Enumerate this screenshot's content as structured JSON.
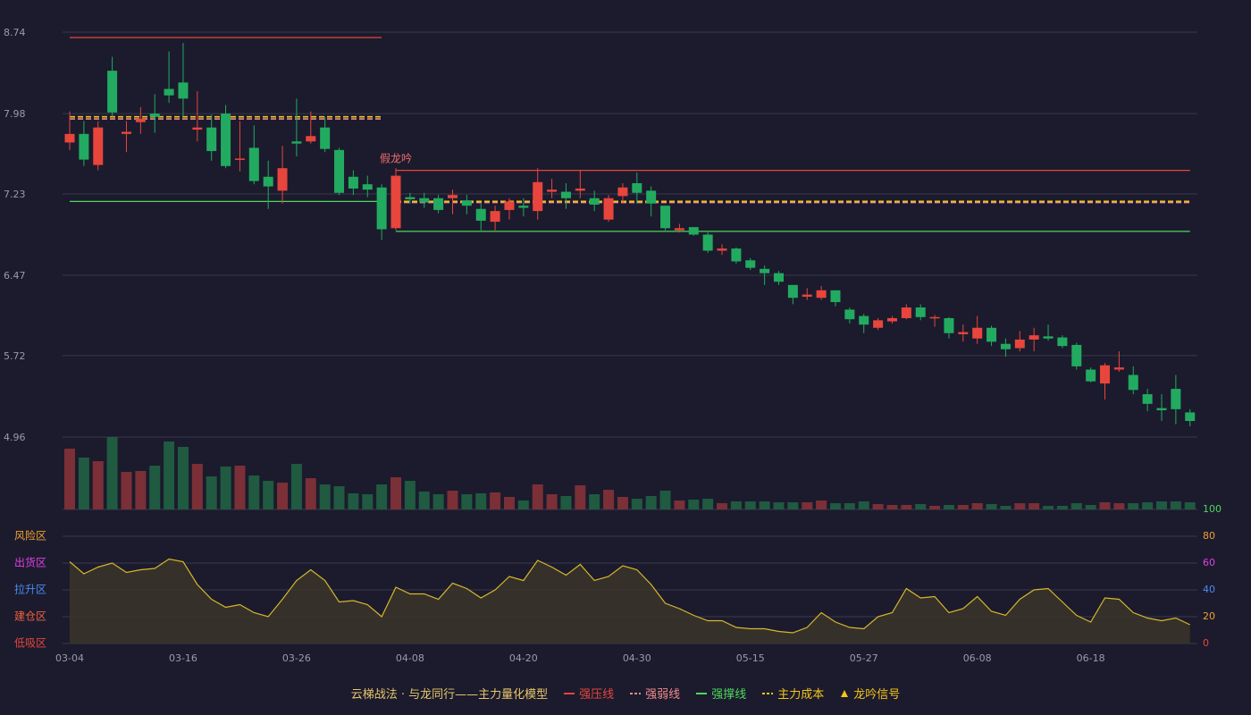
{
  "chart_data": {
    "type": "candlestick",
    "categories": [
      "03-04",
      null,
      null,
      null,
      null,
      null,
      null,
      null,
      "03-16",
      null,
      null,
      null,
      null,
      null,
      null,
      null,
      "03-26",
      null,
      null,
      null,
      null,
      null,
      null,
      null,
      "04-08",
      null,
      null,
      null,
      null,
      null,
      null,
      null,
      "04-20",
      null,
      null,
      null,
      null,
      null,
      null,
      null,
      "04-30",
      null,
      null,
      null,
      null,
      null,
      null,
      null,
      "05-15",
      null,
      null,
      null,
      null,
      null,
      null,
      null,
      "05-27",
      null,
      null,
      null,
      null,
      null,
      null,
      null,
      "06-08",
      null,
      null,
      null,
      null,
      null,
      null,
      null,
      "06-18",
      null,
      null,
      null,
      null,
      null,
      null,
      null
    ],
    "ohlc": {
      "up_color": "#e8453c",
      "down_color": "#22ab60",
      "open": [
        7.71,
        7.79,
        7.5,
        8.38,
        7.79,
        7.9,
        7.98,
        8.21,
        8.27,
        7.83,
        7.85,
        7.98,
        7.55,
        7.66,
        7.39,
        7.26,
        7.72,
        7.72,
        7.85,
        7.64,
        7.39,
        7.32,
        7.29,
        6.91,
        7.2,
        7.19,
        7.19,
        7.19,
        7.17,
        7.09,
        6.97,
        7.08,
        7.12,
        7.07,
        7.25,
        7.25,
        7.26,
        7.19,
        6.99,
        7.21,
        7.33,
        7.26,
        7.12,
        6.89,
        6.92,
        6.85,
        6.7,
        6.72,
        6.61,
        6.53,
        6.49,
        6.38,
        6.27,
        6.26,
        6.33,
        6.15,
        6.09,
        5.98,
        6.04,
        6.07,
        6.17,
        6.07,
        6.07,
        5.92,
        5.88,
        5.98,
        5.83,
        5.79,
        5.87,
        5.9,
        5.89,
        5.82,
        5.59,
        5.46,
        5.59,
        5.54,
        5.36,
        5.23,
        5.41,
        5.19
      ],
      "high": [
        8.0,
        7.91,
        7.91,
        8.51,
        7.91,
        8.04,
        8.16,
        8.56,
        8.64,
        8.19,
        7.97,
        8.06,
        7.91,
        7.87,
        7.54,
        7.68,
        8.12,
        8.0,
        7.95,
        7.66,
        7.45,
        7.4,
        7.32,
        7.47,
        7.24,
        7.24,
        7.22,
        7.27,
        7.22,
        7.14,
        7.12,
        7.19,
        7.19,
        7.47,
        7.37,
        7.33,
        7.45,
        7.26,
        7.22,
        7.33,
        7.43,
        7.3,
        7.12,
        6.95,
        6.92,
        6.87,
        6.76,
        6.73,
        6.63,
        6.56,
        6.51,
        6.38,
        6.35,
        6.37,
        6.33,
        6.17,
        6.11,
        6.07,
        6.09,
        6.2,
        6.2,
        6.1,
        6.08,
        6.01,
        6.09,
        6.0,
        5.88,
        5.95,
        5.98,
        6.01,
        5.91,
        5.84,
        5.61,
        5.65,
        5.76,
        5.62,
        5.41,
        5.36,
        5.54,
        5.22
      ],
      "low": [
        7.64,
        7.49,
        7.45,
        7.95,
        7.62,
        7.79,
        7.8,
        8.08,
        7.95,
        7.72,
        7.54,
        7.47,
        7.44,
        7.32,
        7.09,
        7.14,
        7.58,
        7.7,
        7.62,
        7.22,
        7.22,
        7.2,
        6.8,
        6.89,
        7.14,
        7.1,
        7.05,
        7.04,
        7.04,
        6.89,
        6.89,
        6.99,
        7.02,
        6.99,
        7.19,
        7.09,
        7.19,
        7.07,
        6.97,
        7.14,
        7.14,
        7.02,
        6.89,
        6.87,
        6.84,
        6.68,
        6.66,
        6.58,
        6.52,
        6.38,
        6.38,
        6.2,
        6.24,
        6.24,
        6.18,
        6.02,
        5.93,
        5.96,
        6.02,
        6.06,
        6.05,
        5.99,
        5.88,
        5.85,
        5.83,
        5.81,
        5.71,
        5.76,
        5.76,
        5.86,
        5.79,
        5.59,
        5.47,
        5.31,
        5.57,
        5.36,
        5.2,
        5.11,
        5.08,
        5.06
      ],
      "close": [
        7.79,
        7.55,
        7.85,
        7.99,
        7.81,
        7.93,
        7.95,
        8.15,
        8.12,
        7.85,
        7.63,
        7.49,
        7.56,
        7.35,
        7.3,
        7.47,
        7.7,
        7.77,
        7.65,
        7.24,
        7.28,
        7.27,
        6.9,
        7.4,
        7.18,
        7.15,
        7.08,
        7.22,
        7.12,
        6.98,
        7.07,
        7.16,
        7.1,
        7.34,
        7.27,
        7.19,
        7.28,
        7.13,
        7.19,
        7.29,
        7.24,
        7.14,
        6.91,
        6.91,
        6.85,
        6.7,
        6.72,
        6.6,
        6.54,
        6.49,
        6.41,
        6.26,
        6.29,
        6.33,
        6.22,
        6.06,
        6.01,
        6.05,
        6.07,
        6.17,
        6.08,
        6.08,
        5.93,
        5.94,
        5.98,
        5.85,
        5.78,
        5.87,
        5.91,
        5.88,
        5.81,
        5.62,
        5.48,
        5.63,
        5.61,
        5.4,
        5.27,
        5.21,
        5.22,
        5.11
      ]
    },
    "ylim": [
      4.96,
      8.74
    ],
    "yticks": [
      8.74,
      7.98,
      7.23,
      6.47,
      5.72,
      4.96
    ],
    "grid": true,
    "volume": {
      "up_color": "#7b2f36",
      "down_color": "#1f5a41",
      "values": [
        68,
        58,
        54,
        81,
        42,
        43,
        49,
        76,
        70,
        51,
        37,
        48,
        49,
        38,
        32,
        30,
        51,
        35,
        28,
        26,
        18,
        17,
        28,
        36,
        32,
        20,
        17,
        21,
        17,
        18,
        19,
        14,
        10,
        28,
        17,
        15,
        27,
        17,
        22,
        14,
        12,
        15,
        21,
        10,
        11,
        12,
        7,
        9,
        9,
        9,
        8,
        8,
        8,
        10,
        7,
        7,
        9,
        6,
        5,
        5,
        6,
        4,
        5,
        5,
        7,
        6,
        4,
        7,
        7,
        4,
        4,
        7,
        5,
        8,
        7,
        7,
        8,
        9,
        9,
        8
      ]
    },
    "levels": [
      {
        "name": "强压线",
        "color": "#e8453c",
        "dashed": false,
        "segments": [
          {
            "value": 8.69,
            "from": 0,
            "to": 22
          },
          {
            "value": 7.45,
            "from": 23,
            "to": 79
          }
        ]
      },
      {
        "name": "强弱线",
        "color": "#f08a8a",
        "dashed": true,
        "segments": [
          {
            "value": 7.93,
            "from": 0,
            "to": 22
          },
          {
            "value": 7.15,
            "from": 23,
            "to": 79
          }
        ]
      },
      {
        "name": "强撑线",
        "color": "#4fd65a",
        "dashed": false,
        "segments": [
          {
            "value": 7.16,
            "from": 0,
            "to": 22
          },
          {
            "value": 6.88,
            "from": 23,
            "to": 79
          }
        ]
      },
      {
        "name": "主力成本",
        "color": "#f5c518",
        "dashed": true,
        "segments": [
          {
            "value": 7.95,
            "from": 0,
            "to": 22
          },
          {
            "value": 7.16,
            "from": 23,
            "to": 79
          }
        ]
      }
    ],
    "signal": {
      "name": "龙吟信号",
      "color": "#f5c518"
    },
    "annotation": {
      "text": "假龙吟",
      "category": 23,
      "color": "#f06a6a"
    },
    "indicator": {
      "color": "#d9b62a",
      "fill": "#39352a",
      "values": [
        61,
        52,
        57,
        60,
        53,
        55,
        56,
        63,
        61,
        44,
        33,
        27,
        29,
        23,
        20,
        33,
        47,
        55,
        47,
        31,
        32,
        29,
        20,
        42,
        37,
        37,
        33,
        45,
        41,
        34,
        40,
        50,
        47,
        62,
        57,
        51,
        59,
        47,
        50,
        58,
        55,
        44,
        30,
        26,
        21,
        17,
        17,
        12,
        11,
        11,
        9,
        8,
        12,
        23,
        16,
        12,
        11,
        20,
        23,
        41,
        34,
        35,
        23,
        26,
        35,
        24,
        21,
        33,
        40,
        41,
        31,
        21,
        16,
        34,
        33,
        23,
        19,
        17,
        19,
        14
      ],
      "ylim": [
        0,
        100
      ],
      "yticks": [
        100,
        80,
        60,
        40,
        20,
        0
      ],
      "tick_colors": [
        "#4fd65a",
        "#f0a030",
        "#e040e0",
        "#4a8cf0",
        "#f0a030",
        "#e8453c"
      ],
      "zones": [
        {
          "label": "风险区",
          "value": 80,
          "color": "#f0a030"
        },
        {
          "label": "出货区",
          "value": 60,
          "color": "#e040e0"
        },
        {
          "label": "拉升区",
          "value": 40,
          "color": "#4a8cf0"
        },
        {
          "label": "建仓区",
          "value": 20,
          "color": "#f0603c"
        },
        {
          "label": "低吸区",
          "value": 0,
          "color": "#e8453c"
        }
      ]
    },
    "legend_title": "云梯战法 · 与龙同行——主力量化模型",
    "legend_title_color": "#e8c56a"
  }
}
